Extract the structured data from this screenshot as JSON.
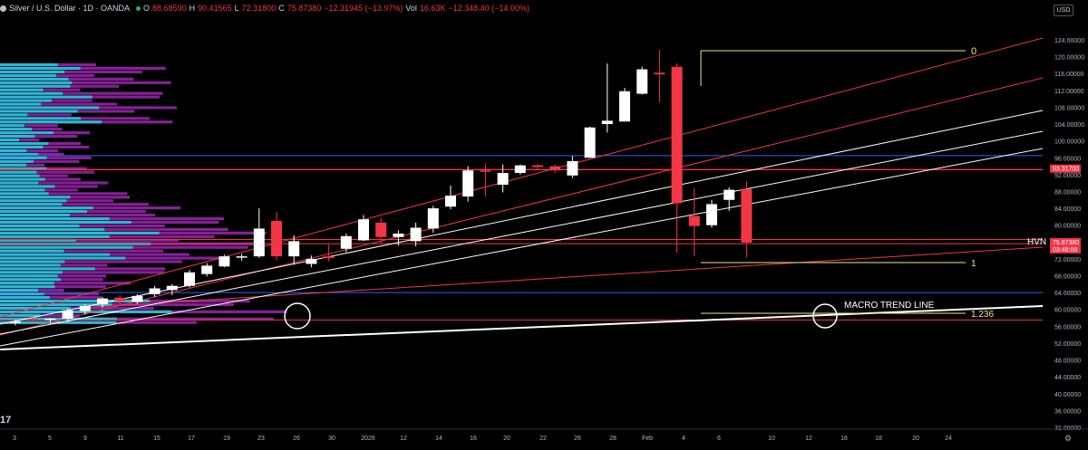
{
  "header": {
    "symbol": "Silver / U.S. Dollar · 1D · OANDA",
    "open_label": "O",
    "open": "88.68590",
    "high_label": "H",
    "high": "90.41565",
    "low_label": "L",
    "low": "72.31800",
    "close_label": "C",
    "close": "75.87380",
    "change": "−12.31945 (−13.97%)",
    "vol_label": "Vol",
    "vol": "16.63K",
    "vol_change": "−12.348.40 (−14.00%)"
  },
  "currency_button": "USD",
  "tv_logo": "17",
  "settings_icon": "gear-icon",
  "colors": {
    "background": "#000000",
    "up_candle": "#ffffff",
    "down_candle": "#f23645",
    "volume_profile_a": "#9c27b0",
    "volume_profile_b": "#26c6da",
    "support": "#2962ff",
    "resistance": "#f23645",
    "fib": "#f0e68c"
  },
  "chart_data": {
    "type": "candlestick",
    "y_range": [
      30,
      128
    ],
    "y_ticks": [
      "124.00000",
      "120.00000",
      "116.00000",
      "112.00000",
      "108.00000",
      "104.00000",
      "100.00000",
      "96.00000",
      "92.00000",
      "88.00000",
      "84.00000",
      "80.00000",
      "76.00000",
      "72.00000",
      "68.00000",
      "64.00000",
      "60.00000",
      "56.00000",
      "52.00000",
      "48.00000",
      "44.00000",
      "40.00000",
      "36.00000",
      "32.00000"
    ],
    "x_ticks": [
      "3",
      "5",
      "9",
      "11",
      "15",
      "17",
      "19",
      "23",
      "26",
      "30",
      "2026",
      "12",
      "14",
      "16",
      "20",
      "22",
      "26",
      "28",
      "Feb",
      "4",
      "6",
      "10",
      "12",
      "16",
      "18",
      "20",
      "24"
    ],
    "price_labels": [
      {
        "value": "93.31700",
        "price": 93.317,
        "color": "#f23645"
      },
      {
        "value": "75.87380",
        "price": 75.8738,
        "color": "#f23645",
        "sub": "03:48:09"
      }
    ],
    "candles": [
      {
        "o": 56.8,
        "h": 57.6,
        "l": 56.2,
        "c": 57.2
      },
      {
        "o": 57.8,
        "h": 58.2,
        "l": 57.0,
        "c": 57.4
      },
      {
        "o": 57.5,
        "h": 58.0,
        "l": 56.8,
        "c": 57.8
      },
      {
        "o": 57.8,
        "h": 60.2,
        "l": 57.0,
        "c": 59.8
      },
      {
        "o": 59.6,
        "h": 61.2,
        "l": 58.8,
        "c": 60.8
      },
      {
        "o": 61.2,
        "h": 63.0,
        "l": 60.4,
        "c": 62.6
      },
      {
        "o": 62.8,
        "h": 63.4,
        "l": 61.2,
        "c": 62.0
      },
      {
        "o": 61.8,
        "h": 63.6,
        "l": 61.2,
        "c": 63.2
      },
      {
        "o": 63.6,
        "h": 65.6,
        "l": 63.0,
        "c": 65.0
      },
      {
        "o": 64.6,
        "h": 66.0,
        "l": 63.4,
        "c": 65.6
      },
      {
        "o": 65.6,
        "h": 69.4,
        "l": 65.2,
        "c": 68.8
      },
      {
        "o": 68.4,
        "h": 71.0,
        "l": 67.8,
        "c": 70.4
      },
      {
        "o": 70.2,
        "h": 73.0,
        "l": 70.0,
        "c": 72.6
      },
      {
        "o": 72.4,
        "h": 73.2,
        "l": 71.6,
        "c": 72.6
      },
      {
        "o": 72.6,
        "h": 84.0,
        "l": 72.2,
        "c": 79.2
      },
      {
        "o": 81.0,
        "h": 83.2,
        "l": 71.6,
        "c": 72.6
      },
      {
        "o": 72.6,
        "h": 77.6,
        "l": 70.6,
        "c": 76.2
      },
      {
        "o": 70.8,
        "h": 72.8,
        "l": 70.0,
        "c": 72.0
      },
      {
        "o": 72.6,
        "h": 75.4,
        "l": 71.4,
        "c": 72.2
      },
      {
        "o": 74.4,
        "h": 78.0,
        "l": 73.6,
        "c": 77.4
      },
      {
        "o": 76.4,
        "h": 82.4,
        "l": 76.2,
        "c": 81.4
      },
      {
        "o": 80.6,
        "h": 81.8,
        "l": 75.6,
        "c": 77.2
      },
      {
        "o": 77.2,
        "h": 78.8,
        "l": 75.2,
        "c": 78.0
      },
      {
        "o": 76.2,
        "h": 80.6,
        "l": 75.0,
        "c": 79.4
      },
      {
        "o": 79.2,
        "h": 84.6,
        "l": 78.2,
        "c": 84.0
      },
      {
        "o": 84.4,
        "h": 89.4,
        "l": 83.8,
        "c": 87.0
      },
      {
        "o": 86.8,
        "h": 94.0,
        "l": 85.6,
        "c": 93.0
      },
      {
        "o": 93.0,
        "h": 94.6,
        "l": 86.8,
        "c": 92.8
      },
      {
        "o": 89.6,
        "h": 94.4,
        "l": 87.8,
        "c": 92.4
      },
      {
        "o": 92.4,
        "h": 94.4,
        "l": 92.0,
        "c": 94.2
      },
      {
        "o": 94.2,
        "h": 94.6,
        "l": 93.2,
        "c": 93.8
      },
      {
        "o": 94.0,
        "h": 94.4,
        "l": 92.4,
        "c": 93.0
      },
      {
        "o": 91.8,
        "h": 96.4,
        "l": 91.2,
        "c": 95.2
      },
      {
        "o": 96.0,
        "h": 103.4,
        "l": 96.0,
        "c": 103.2
      },
      {
        "o": 104.0,
        "h": 118.4,
        "l": 102.0,
        "c": 104.8
      },
      {
        "o": 104.6,
        "h": 112.6,
        "l": 104.6,
        "c": 111.8
      },
      {
        "o": 111.2,
        "h": 117.6,
        "l": 111.0,
        "c": 117.0
      },
      {
        "o": 116.2,
        "h": 121.6,
        "l": 109.2,
        "c": 115.8
      },
      {
        "o": 117.6,
        "h": 118.4,
        "l": 73.4,
        "c": 85.2
      },
      {
        "o": 82.2,
        "h": 88.8,
        "l": 72.6,
        "c": 79.8
      },
      {
        "o": 80.0,
        "h": 86.0,
        "l": 79.4,
        "c": 85.0
      },
      {
        "o": 86.0,
        "h": 89.0,
        "l": 83.4,
        "c": 88.4
      },
      {
        "o": 88.6,
        "h": 90.4,
        "l": 72.3,
        "c": 75.87
      }
    ],
    "annotations": [
      {
        "text": "0",
        "color": "#f0e68c"
      },
      {
        "text": "1",
        "color": "#f0e68c"
      },
      {
        "text": "1.236",
        "color": "#f0e68c"
      },
      {
        "text": "HVN",
        "color": "#ffffff"
      },
      {
        "text": "MACRO TREND LINE",
        "color": "#ffffff"
      }
    ]
  }
}
